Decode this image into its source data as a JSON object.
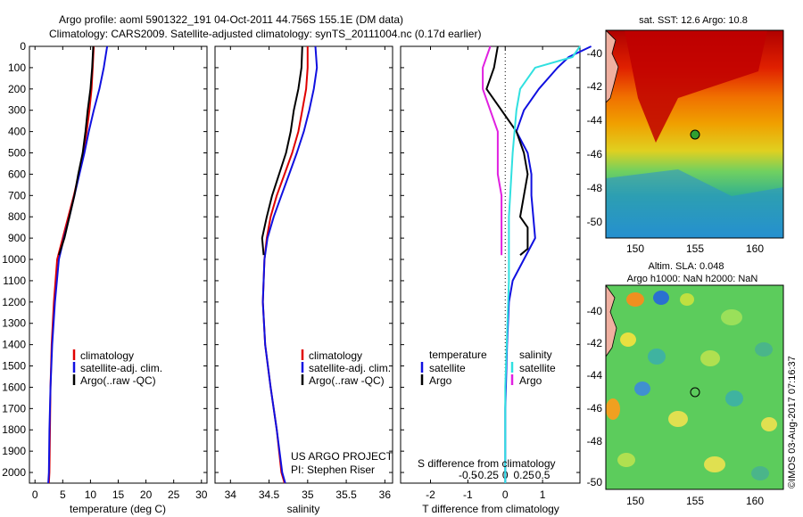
{
  "header": {
    "title_line1": "Argo profile: aoml 5901322_191 04-Oct-2011 44.756S 155.1E (DM data)",
    "title_line2": "Climatology: CARS2009. Satellite-adjusted climatology: synTS_20111004.nc (0.17d earlier)"
  },
  "colors": {
    "climatology": "#e00000",
    "satellite": "#1010e0",
    "argo": "#000000",
    "salinity_sat": "#30e0e0",
    "salinity_argo": "#e020e0"
  },
  "chart_data": [
    {
      "type": "line",
      "name": "temperature-profile",
      "xlabel": "temperature (deg C)",
      "ylabel": "",
      "xlim": [
        -1,
        31
      ],
      "ylim": [
        2050,
        0
      ],
      "xticks": [
        0,
        5,
        10,
        15,
        20,
        25,
        30
      ],
      "yticks": [
        0,
        100,
        200,
        300,
        400,
        500,
        600,
        700,
        800,
        900,
        1000,
        1100,
        1200,
        1300,
        1400,
        1500,
        1600,
        1700,
        1800,
        1900,
        2000
      ],
      "legend": [
        "climatology",
        "satellite-adj. clim.",
        "Argo(..raw -QC)"
      ],
      "series": [
        {
          "key": "climatology",
          "color": "#e00000",
          "x": [
            10.6,
            10.4,
            10.2,
            9.8,
            9.3,
            8.7,
            7.9,
            7.0,
            6.0,
            5.0,
            4.0,
            3.4,
            3.0,
            2.8,
            2.7,
            2.6,
            2.5
          ],
          "y": [
            0,
            100,
            200,
            300,
            400,
            500,
            600,
            700,
            800,
            900,
            1000,
            1200,
            1400,
            1600,
            1800,
            2000,
            2050
          ]
        },
        {
          "key": "satellite",
          "color": "#1010e0",
          "x": [
            13.0,
            12.4,
            11.6,
            10.6,
            9.7,
            8.9,
            8.0,
            7.1,
            6.2,
            5.2,
            4.3,
            3.6,
            3.1,
            2.8,
            2.6,
            2.5,
            2.4
          ],
          "y": [
            0,
            100,
            200,
            300,
            400,
            500,
            600,
            700,
            800,
            900,
            1000,
            1200,
            1400,
            1600,
            1800,
            2000,
            2050
          ]
        },
        {
          "key": "argo",
          "color": "#000000",
          "x": [
            10.5,
            10.3,
            10.0,
            9.5,
            9.1,
            8.6,
            7.8,
            7.1,
            6.2,
            5.3,
            4.3
          ],
          "y": [
            0,
            100,
            200,
            300,
            400,
            500,
            600,
            700,
            800,
            900,
            980
          ]
        }
      ]
    },
    {
      "type": "line",
      "name": "salinity-profile",
      "xlabel": "salinity",
      "xlim": [
        33.8,
        36.1
      ],
      "ylim": [
        2050,
        0
      ],
      "xticks": [
        34,
        34.5,
        35,
        35.5,
        36
      ],
      "xticklabels": [
        "34",
        "34.5",
        "35",
        "35.5",
        "36"
      ],
      "legend": [
        "climatology",
        "satellite-adj. clim.",
        "Argo(..raw -QC)"
      ],
      "annotation": [
        "US ARGO PROJECT",
        "PI: Stephen Riser"
      ],
      "series": [
        {
          "key": "climatology",
          "color": "#e00000",
          "x": [
            35.0,
            35.0,
            34.98,
            34.93,
            34.88,
            34.8,
            34.7,
            34.6,
            34.52,
            34.47,
            34.44,
            34.42,
            34.45,
            34.52,
            34.6,
            34.66,
            34.7
          ],
          "y": [
            0,
            100,
            200,
            300,
            400,
            500,
            600,
            700,
            800,
            900,
            1000,
            1200,
            1400,
            1600,
            1800,
            2000,
            2050
          ]
        },
        {
          "key": "satellite",
          "color": "#1010e0",
          "x": [
            35.1,
            35.12,
            35.08,
            35.02,
            34.95,
            34.86,
            34.76,
            34.66,
            34.56,
            34.48,
            34.44,
            34.42,
            34.45,
            34.52,
            34.6,
            34.67,
            34.71
          ],
          "y": [
            0,
            100,
            200,
            300,
            400,
            500,
            600,
            700,
            800,
            900,
            1000,
            1200,
            1400,
            1600,
            1800,
            2000,
            2050
          ]
        },
        {
          "key": "argo",
          "color": "#000000",
          "x": [
            34.93,
            34.92,
            34.88,
            34.82,
            34.78,
            34.72,
            34.63,
            34.54,
            34.47,
            34.41,
            34.43
          ],
          "y": [
            0,
            100,
            200,
            300,
            400,
            500,
            600,
            700,
            800,
            900,
            980
          ]
        }
      ]
    },
    {
      "type": "line",
      "name": "difference-profile",
      "xlabel": "T difference from climatology",
      "xlabel_top": "S difference from climatology",
      "xlim": [
        -2.8,
        2.0
      ],
      "ylim": [
        2050,
        0
      ],
      "xticks": [
        -2,
        -1,
        0,
        1
      ],
      "top_ticks": [
        -0.5,
        -0.25,
        0,
        0.25,
        0.5
      ],
      "top_ticklabels": [
        "-0.5",
        "-0.25",
        "0",
        "0.25",
        "0.5"
      ],
      "legend_temperature": {
        "title": "temperature",
        "items": [
          "satellite",
          "Argo"
        ]
      },
      "legend_salinity": {
        "title": "salinity",
        "items": [
          "satellite",
          "Argo"
        ]
      },
      "series": [
        {
          "key": "t-satellite",
          "color": "#1010e0",
          "x": [
            2.3,
            1.7,
            1.4,
            0.9,
            0.5,
            0.3,
            0.6,
            0.7,
            0.7,
            0.8,
            0.5,
            0.2,
            0.1,
            0.05,
            0.0,
            0.0
          ],
          "y": [
            0,
            50,
            100,
            200,
            300,
            400,
            500,
            600,
            700,
            900,
            1000,
            1100,
            1200,
            1400,
            1700,
            2050
          ]
        },
        {
          "key": "t-argo",
          "color": "#000000",
          "x": [
            -0.2,
            -0.3,
            -0.5,
            -0.1,
            0.3,
            0.5,
            0.6,
            0.5,
            0.4,
            0.6,
            0.6,
            0.4
          ],
          "y": [
            0,
            100,
            200,
            300,
            400,
            500,
            600,
            700,
            800,
            850,
            950,
            980
          ]
        },
        {
          "key": "s-satellite",
          "color": "#30e0e0",
          "x": [
            1.0,
            0.9,
            0.4,
            0.2,
            0.15,
            0.1,
            0.05,
            0.05,
            0.02,
            0.0,
            0.0,
            0.0
          ],
          "y": [
            0,
            50,
            100,
            200,
            300,
            500,
            800,
            1100,
            1400,
            1600,
            1800,
            2050
          ]
        },
        {
          "key": "s-argo",
          "color": "#e020e0",
          "x": [
            -0.2,
            -0.3,
            -0.3,
            -0.2,
            -0.1,
            -0.1,
            -0.1,
            -0.05,
            -0.05,
            -0.05
          ],
          "y": [
            0,
            100,
            200,
            300,
            400,
            500,
            600,
            700,
            800,
            980
          ]
        }
      ]
    }
  ],
  "map_sst": {
    "title": "sat. SST: 12.6 Argo: 10.8",
    "xticks": [
      "150",
      "155",
      "160"
    ],
    "yticks": [
      "-40",
      "-42",
      "-44",
      "-46",
      "-48",
      "-50"
    ]
  },
  "map_sla": {
    "title_line1": "Altim. SLA: 0.048",
    "title_line2": "Argo h1000: NaN h2000: NaN",
    "xticks": [
      "150",
      "155",
      "160"
    ],
    "yticks": [
      "-40",
      "-42",
      "-44",
      "-46",
      "-48",
      "-50"
    ]
  },
  "credit": "©IMOS 03-Aug-2017 07:16:37"
}
